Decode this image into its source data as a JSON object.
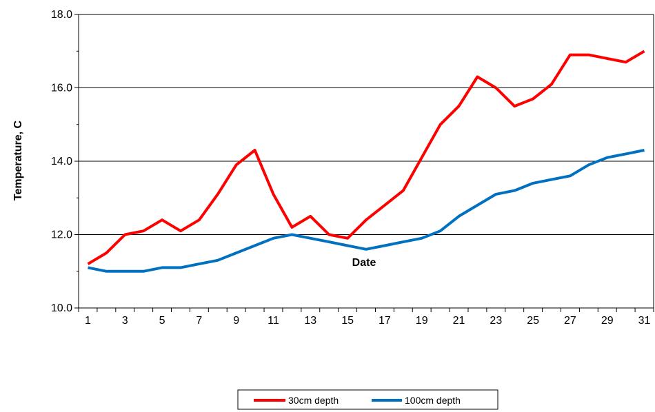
{
  "chart_data": {
    "type": "line",
    "title": "",
    "xlabel": "Date",
    "ylabel": "Temperature, C",
    "x": [
      1,
      2,
      3,
      4,
      5,
      6,
      7,
      8,
      9,
      10,
      11,
      12,
      13,
      14,
      15,
      16,
      17,
      18,
      19,
      20,
      21,
      22,
      23,
      24,
      25,
      26,
      27,
      28,
      29,
      30,
      31
    ],
    "x_tick_labels": [
      "1",
      "3",
      "5",
      "7",
      "9",
      "11",
      "13",
      "15",
      "17",
      "19",
      "21",
      "23",
      "25",
      "27",
      "29",
      "31"
    ],
    "y_tick_labels": [
      "10.0",
      "12.0",
      "14.0",
      "16.0",
      "18.0"
    ],
    "ylim": [
      10,
      18
    ],
    "grid": "horizontal major gridlines",
    "legend_position": "bottom",
    "series": [
      {
        "name": "30cm depth",
        "color": "#ff0000",
        "values": [
          11.2,
          11.5,
          12.0,
          12.1,
          12.4,
          12.1,
          12.4,
          13.1,
          13.9,
          14.3,
          13.1,
          12.2,
          12.5,
          12.0,
          11.9,
          12.4,
          12.8,
          13.2,
          14.1,
          15.0,
          15.5,
          16.3,
          16.0,
          15.5,
          15.7,
          16.1,
          16.9,
          16.9,
          16.8,
          16.7,
          17.0
        ]
      },
      {
        "name": "100cm depth",
        "color": "#0070c0",
        "values": [
          11.1,
          11.0,
          11.0,
          11.0,
          11.1,
          11.1,
          11.2,
          11.3,
          11.5,
          11.7,
          11.9,
          12.0,
          11.9,
          11.8,
          11.7,
          11.6,
          11.7,
          11.8,
          11.9,
          12.1,
          12.5,
          12.8,
          13.1,
          13.2,
          13.4,
          13.5,
          13.6,
          13.9,
          14.1,
          14.2,
          14.3
        ]
      }
    ]
  }
}
